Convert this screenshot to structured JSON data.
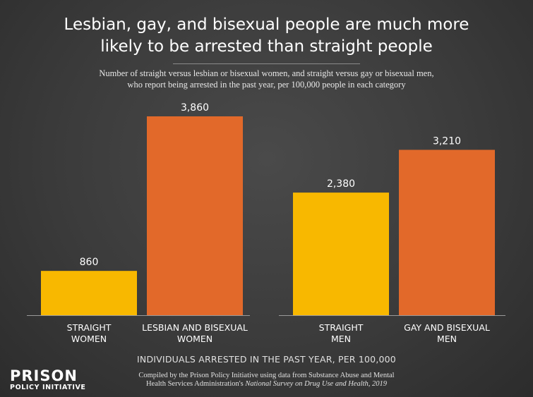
{
  "title": "Lesbian, gay, and bisexual people are much more\nlikely to be arrested than straight people",
  "subtitle": "Number of straight versus lesbian or bisexual women, and straight versus gay or bisexual men,\nwho report being arrested in the past year, per 100,000 people in each category",
  "colors": {
    "straight": "#f8b800",
    "lgb": "#e2692a",
    "baseline": "#9a9a9a"
  },
  "chart_data": {
    "type": "bar",
    "title": "Lesbian, gay, and bisexual people are much more likely to be arrested than straight people",
    "xlabel": "INDIVIDUALS ARRESTED IN THE PAST YEAR, PER 100,000",
    "ylabel": "",
    "ylim": [
      0,
      3860
    ],
    "grid": false,
    "categories": [
      "STRAIGHT WOMEN",
      "LESBIAN AND BISEXUAL WOMEN",
      "STRAIGHT MEN",
      "GAY AND BISEXUAL MEN"
    ],
    "category_lines": [
      [
        "STRAIGHT",
        "WOMEN"
      ],
      [
        "LESBIAN AND BISEXUAL",
        "WOMEN"
      ],
      [
        "STRAIGHT",
        "MEN"
      ],
      [
        "GAY AND BISEXUAL",
        "MEN"
      ]
    ],
    "values": [
      860,
      3860,
      2380,
      3210
    ],
    "value_labels": [
      "860",
      "3,860",
      "2,380",
      "3,210"
    ],
    "groups": [
      "Women",
      "Men"
    ]
  },
  "branding": {
    "logo_top": "PRISON",
    "logo_bottom": "POLICY INITIATIVE"
  },
  "footer": {
    "line1": "Compiled by the Prison Policy Initiative using data from Substance Abuse and Mental",
    "line2_plain": "Health Services Administration's ",
    "line2_italic": "National Survey on Drug Use and Health, 2019"
  }
}
